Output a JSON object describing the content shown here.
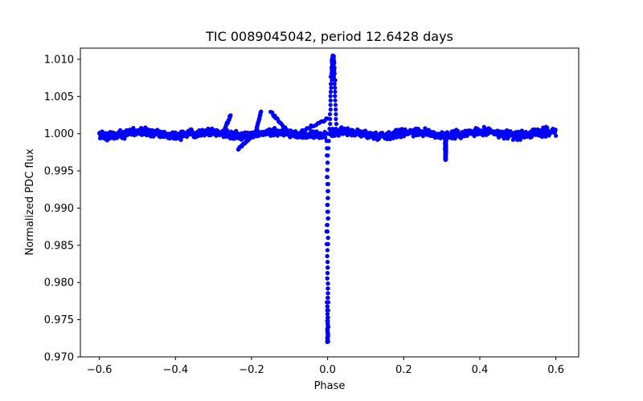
{
  "chart_data": {
    "type": "scatter",
    "title": "TIC 0089045042, period 12.6428 days",
    "xlabel": "Phase",
    "ylabel": "Normalized PDC flux",
    "xlim": [
      -0.65,
      0.66
    ],
    "ylim": [
      0.97,
      1.0115
    ],
    "xticks": [
      -0.6,
      -0.4,
      -0.2,
      0.0,
      0.2,
      0.4,
      0.6
    ],
    "xtick_labels": [
      "−0.6",
      "−0.4",
      "−0.2",
      "0.0",
      "0.2",
      "0.4",
      "0.6"
    ],
    "yticks": [
      0.97,
      0.975,
      0.98,
      0.985,
      0.99,
      0.995,
      1.0,
      1.005,
      1.01
    ],
    "ytick_labels": [
      "0.970",
      "0.975",
      "0.980",
      "0.985",
      "0.990",
      "0.995",
      "1.000",
      "1.005",
      "1.010"
    ],
    "grid": false,
    "series": [
      {
        "name": "PDC flux",
        "color": "#0000ff",
        "baseline": 1.0,
        "baseline_scatter": 0.0008,
        "x_range": [
          -0.6,
          0.6
        ],
        "features": [
          {
            "kind": "bump",
            "x": [
              -0.275,
              -0.255
            ],
            "y": [
              1.0,
              1.0025
            ]
          },
          {
            "kind": "bump",
            "x": [
              -0.235,
              -0.2
            ],
            "y": [
              0.998,
              0.9995
            ]
          },
          {
            "kind": "bump",
            "x": [
              -0.19,
              -0.175
            ],
            "y": [
              1.0,
              1.003
            ]
          },
          {
            "kind": "bump",
            "x": [
              -0.15,
              -0.1
            ],
            "y": [
              1.003,
              1.0
            ]
          },
          {
            "kind": "bump",
            "x": [
              -0.08,
              0.0
            ],
            "y": [
              1.0,
              1.002
            ]
          },
          {
            "kind": "dip",
            "x": 0.0,
            "depth_min": 0.972,
            "width": 0.012
          },
          {
            "kind": "spike",
            "x": 0.012,
            "peak": 1.0105,
            "width": 0.02
          },
          {
            "kind": "dip",
            "x": 0.31,
            "depth_min": 0.9965,
            "width": 0.008
          }
        ]
      }
    ]
  }
}
